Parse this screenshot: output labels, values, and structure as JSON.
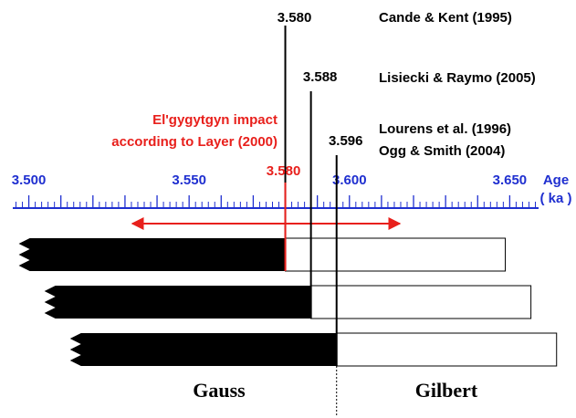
{
  "chart_data": {
    "type": "timescale",
    "xlabel": [
      "Age",
      "( ka )"
    ],
    "xlim": [
      3.495,
      3.659
    ],
    "xticks": [
      {
        "value": 3.5,
        "label": "3.500"
      },
      {
        "value": 3.55,
        "label": "3.550"
      },
      {
        "value": 3.6,
        "label": "3.600"
      },
      {
        "value": 3.65,
        "label": "3.650"
      }
    ],
    "xticks_major": [
      3.5,
      3.51,
      3.52,
      3.53,
      3.54,
      3.55,
      3.56,
      3.57,
      3.58,
      3.59,
      3.6,
      3.61,
      3.62,
      3.63,
      3.64,
      3.65
    ],
    "xticks_minor": [
      3.496,
      3.498,
      3.502,
      3.504,
      3.506,
      3.508,
      3.512,
      3.514,
      3.516,
      3.518,
      3.522,
      3.524,
      3.526,
      3.528,
      3.532,
      3.534,
      3.536,
      3.538,
      3.542,
      3.544,
      3.546,
      3.548,
      3.552,
      3.554,
      3.556,
      3.558,
      3.562,
      3.564,
      3.566,
      3.568,
      3.572,
      3.574,
      3.576,
      3.578,
      3.582,
      3.584,
      3.586,
      3.588,
      3.592,
      3.594,
      3.596,
      3.598,
      3.602,
      3.604,
      3.606,
      3.608,
      3.612,
      3.614,
      3.616,
      3.618,
      3.622,
      3.624,
      3.626,
      3.628,
      3.632,
      3.634,
      3.636,
      3.638,
      3.642,
      3.644,
      3.646,
      3.648,
      3.652,
      3.654,
      3.656,
      3.658
    ],
    "boundaries": {
      "values": [
        3.58,
        3.588,
        3.596
      ],
      "value_labels": [
        "3.580",
        "3.588",
        "3.596"
      ],
      "sources": [
        [
          "Cande & Kent (1995)"
        ],
        [
          "Lisiecki & Raymo (2005)"
        ],
        [
          "Lourens et al. (1996)",
          "Ogg & Smith (2004)"
        ]
      ]
    },
    "impact": {
      "label": [
        "El'gygytgyn impact",
        "according to Layer (2000)"
      ],
      "value": 3.58,
      "value_label": "3.580"
    },
    "chrons": [
      "Gauss",
      "Gilbert"
    ]
  }
}
